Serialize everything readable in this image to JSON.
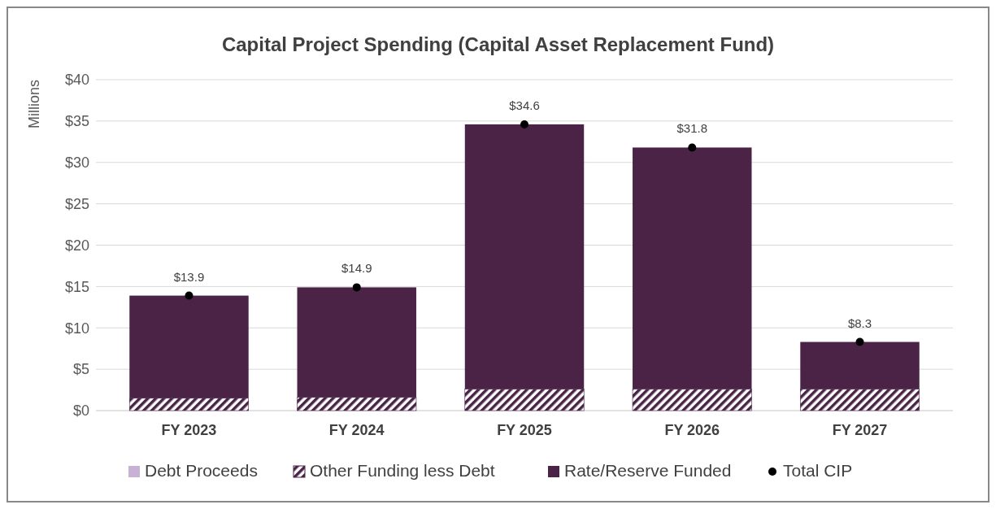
{
  "chart_data": {
    "type": "bar",
    "title": "Capital Project Spending (Capital Asset Replacement Fund)",
    "ylabel": "Millions",
    "categories": [
      "FY 2023",
      "FY 2024",
      "FY 2025",
      "FY 2026",
      "FY 2027"
    ],
    "stacked": true,
    "series": [
      {
        "name": "Debt Proceeds",
        "color": "#c9b1d6",
        "values": [
          0,
          0,
          0,
          0,
          0
        ]
      },
      {
        "name": "Other Funding less Debt",
        "color": "#4a2346",
        "values": [
          1.5,
          1.6,
          2.6,
          2.6,
          2.6
        ]
      },
      {
        "name": "Rate/Reserve Funded",
        "color": "#4a2346",
        "values": [
          12.4,
          13.3,
          32.0,
          29.2,
          5.7
        ]
      },
      {
        "name": "Total CIP",
        "type": "scatter",
        "color": "#000000",
        "values": [
          13.9,
          14.9,
          34.6,
          31.8,
          8.3
        ],
        "value_labels": [
          "$13.9",
          "$14.9",
          "$34.6",
          "$31.8",
          "$8.3"
        ]
      }
    ],
    "ylim": [
      0,
      40
    ],
    "yticks": [
      {
        "value": 0,
        "label": "$0"
      },
      {
        "value": 5,
        "label": "$5"
      },
      {
        "value": 10,
        "label": "$10"
      },
      {
        "value": 15,
        "label": "$15"
      },
      {
        "value": 20,
        "label": "$20"
      },
      {
        "value": 25,
        "label": "$25"
      },
      {
        "value": 30,
        "label": "$30"
      },
      {
        "value": 35,
        "label": "$35"
      },
      {
        "value": 40,
        "label": "$40"
      }
    ],
    "grid": "y",
    "legend": "bottom",
    "marker": "circle"
  }
}
